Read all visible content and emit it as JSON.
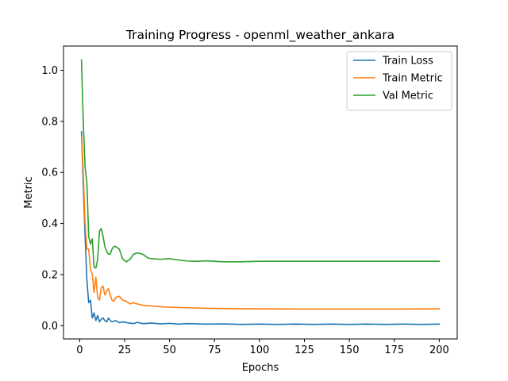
{
  "chart_data": {
    "type": "line",
    "title": "Training Progress - openml_weather_ankara",
    "xlabel": "Epochs",
    "ylabel": "Metric",
    "xlim": [
      -9,
      210
    ],
    "ylim": [
      -0.052,
      1.095
    ],
    "xticks": [
      0,
      25,
      50,
      75,
      100,
      125,
      150,
      175,
      200
    ],
    "yticks": [
      0.0,
      0.2,
      0.4,
      0.6,
      0.8,
      1.0
    ],
    "xtick_labels": [
      "0",
      "25",
      "50",
      "75",
      "100",
      "125",
      "150",
      "175",
      "200"
    ],
    "ytick_labels": [
      "0.0",
      "0.2",
      "0.4",
      "0.6",
      "0.8",
      "1.0"
    ],
    "grid": false,
    "legend_position": "top-right",
    "series": [
      {
        "name": "Train Loss",
        "color": "#1f77b4",
        "x": [
          1,
          2,
          3,
          4,
          5,
          6,
          7,
          8,
          9,
          10,
          11,
          12,
          13,
          14,
          15,
          16,
          17,
          18,
          20,
          22,
          24,
          26,
          28,
          30,
          32,
          35,
          40,
          45,
          50,
          55,
          60,
          70,
          80,
          90,
          100,
          110,
          120,
          130,
          140,
          150,
          160,
          170,
          180,
          190,
          200
        ],
        "y": [
          0.76,
          0.55,
          0.35,
          0.18,
          0.09,
          0.1,
          0.03,
          0.05,
          0.02,
          0.04,
          0.015,
          0.025,
          0.03,
          0.02,
          0.015,
          0.03,
          0.02,
          0.015,
          0.02,
          0.012,
          0.015,
          0.012,
          0.01,
          0.008,
          0.013,
          0.008,
          0.01,
          0.007,
          0.009,
          0.006,
          0.008,
          0.006,
          0.007,
          0.005,
          0.006,
          0.005,
          0.006,
          0.005,
          0.006,
          0.005,
          0.006,
          0.005,
          0.006,
          0.005,
          0.006
        ]
      },
      {
        "name": "Train Metric",
        "color": "#ff7f0e",
        "x": [
          1,
          2,
          3,
          4,
          5,
          6,
          7,
          8,
          9,
          10,
          11,
          12,
          13,
          14,
          15,
          16,
          17,
          18,
          19,
          20,
          22,
          24,
          26,
          28,
          30,
          32,
          35,
          40,
          45,
          50,
          60,
          70,
          80,
          90,
          100,
          120,
          140,
          160,
          180,
          200
        ],
        "y": [
          0.74,
          0.6,
          0.4,
          0.3,
          0.3,
          0.22,
          0.2,
          0.13,
          0.19,
          0.11,
          0.1,
          0.15,
          0.155,
          0.12,
          0.135,
          0.145,
          0.12,
          0.1,
          0.095,
          0.11,
          0.115,
          0.1,
          0.095,
          0.085,
          0.09,
          0.085,
          0.08,
          0.077,
          0.074,
          0.072,
          0.07,
          0.068,
          0.067,
          0.066,
          0.066,
          0.065,
          0.065,
          0.065,
          0.065,
          0.066
        ]
      },
      {
        "name": "Val Metric",
        "color": "#2ca02c",
        "x": [
          1,
          2,
          3,
          4,
          5,
          6,
          7,
          8,
          9,
          10,
          11,
          12,
          13,
          14,
          15,
          16,
          17,
          18,
          19,
          20,
          22,
          24,
          26,
          28,
          30,
          32,
          35,
          38,
          40,
          45,
          50,
          55,
          60,
          65,
          70,
          75,
          80,
          90,
          100,
          120,
          140,
          160,
          180,
          200
        ],
        "y": [
          1.04,
          0.8,
          0.62,
          0.56,
          0.35,
          0.32,
          0.34,
          0.23,
          0.225,
          0.26,
          0.37,
          0.38,
          0.35,
          0.31,
          0.29,
          0.28,
          0.28,
          0.3,
          0.31,
          0.31,
          0.3,
          0.26,
          0.25,
          0.26,
          0.28,
          0.285,
          0.28,
          0.265,
          0.262,
          0.26,
          0.262,
          0.257,
          0.253,
          0.252,
          0.254,
          0.252,
          0.25,
          0.25,
          0.252,
          0.252,
          0.252,
          0.252,
          0.252,
          0.252
        ]
      }
    ]
  }
}
